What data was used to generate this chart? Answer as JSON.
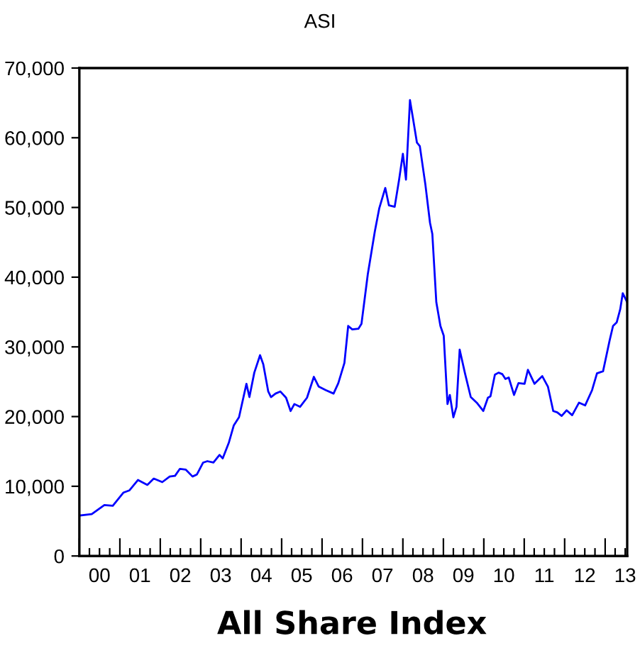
{
  "chart_data": {
    "type": "line",
    "title": "ASI",
    "xlabel": "All Share Index",
    "x": [
      "2000-01-01",
      "2000-04-22",
      "2000-08-14",
      "2000-10-29",
      "2001-02-03",
      "2001-03-27",
      "2001-06-13",
      "2001-09-06",
      "2001-11-03",
      "2002-01-19",
      "2002-03-27",
      "2002-05-14",
      "2002-06-27",
      "2002-08-18",
      "2002-10-19",
      "2002-11-28",
      "2003-01-23",
      "2003-03-02",
      "2003-04-26",
      "2003-06-20",
      "2003-07-19",
      "2003-09-13",
      "2003-10-26",
      "2003-12-13",
      "2004-02-18",
      "2004-03-16",
      "2004-04-29",
      "2004-06-20",
      "2004-07-19",
      "2004-09-02",
      "2004-09-27",
      "2004-11-07",
      "2004-12-20",
      "2005-02-10",
      "2005-03-23",
      "2005-04-26",
      "2005-06-16",
      "2005-08-18",
      "2005-10-19",
      "2005-12-02",
      "2006-02-03",
      "2006-04-15",
      "2006-05-28",
      "2006-07-22",
      "2006-08-25",
      "2006-10-01",
      "2006-11-25",
      "2006-12-23",
      "2007-02-18",
      "2007-04-22",
      "2007-06-02",
      "2007-07-26",
      "2007-08-28",
      "2007-10-19",
      "2007-11-28",
      "2008-01-01",
      "2008-01-29",
      "2008-03-05",
      "2008-04-01",
      "2008-05-07",
      "2008-06-02",
      "2008-07-22",
      "2008-09-02",
      "2008-09-23",
      "2008-10-29",
      "2008-12-05",
      "2009-01-04",
      "2009-02-07",
      "2009-02-28",
      "2009-04-01",
      "2009-04-29",
      "2009-05-28",
      "2009-07-15",
      "2009-09-05",
      "2009-10-29",
      "2009-12-27",
      "2010-02-07",
      "2010-03-02",
      "2010-04-11",
      "2010-05-14",
      "2010-06-16",
      "2010-07-15",
      "2010-08-14",
      "2010-10-01",
      "2010-11-10",
      "2011-01-04",
      "2011-02-03",
      "2011-04-04",
      "2011-06-13",
      "2011-08-03",
      "2011-09-20",
      "2011-10-26",
      "2011-12-05",
      "2012-01-19",
      "2012-03-09",
      "2012-05-10",
      "2012-07-04",
      "2012-09-05",
      "2012-10-19",
      "2012-12-13",
      "2013-02-10",
      "2013-03-13",
      "2013-04-15",
      "2013-05-17",
      "2013-06-09",
      "2013-07-19"
    ],
    "series": [
      {
        "color": "#0000ff",
        "values": [
          5800,
          6000,
          7300,
          7200,
          9100,
          9400,
          10900,
          10200,
          11100,
          10600,
          11400,
          11500,
          12500,
          12400,
          11400,
          11700,
          13400,
          13600,
          13400,
          14500,
          14000,
          16300,
          18700,
          19900,
          24700,
          22800,
          26300,
          28800,
          27500,
          23600,
          22800,
          23300,
          23600,
          22700,
          20800,
          21800,
          21400,
          22700,
          25700,
          24300,
          23800,
          23300,
          24800,
          27700,
          33000,
          32500,
          32600,
          33300,
          40400,
          46500,
          49900,
          52800,
          50300,
          50100,
          54000,
          57700,
          54000,
          65400,
          62800,
          59300,
          58800,
          53300,
          47800,
          46200,
          36400,
          33000,
          31600,
          21800,
          23100,
          19900,
          21400,
          29600,
          26200,
          22800,
          22000,
          20800,
          22700,
          22900,
          26000,
          26300,
          26100,
          25400,
          25600,
          23100,
          24800,
          24700,
          26700,
          24700,
          25800,
          24300,
          20800,
          20600,
          20100,
          20900,
          20200,
          22000,
          21600,
          23800,
          26200,
          26500,
          30900,
          33000,
          33500,
          35400,
          37700,
          36400
        ]
      }
    ],
    "xlim": [
      "2000-01-01",
      "2013-07-19"
    ],
    "xticks": [
      {
        "value": "2000-01-01",
        "label": null
      },
      {
        "value": "2000-04-01",
        "label": null
      },
      {
        "value": "2000-07-01",
        "label": "00"
      },
      {
        "value": "2000-10-01",
        "label": null
      },
      {
        "value": "2001-01-01",
        "label": null
      },
      {
        "value": "2001-04-01",
        "label": null
      },
      {
        "value": "2001-07-01",
        "label": "01"
      },
      {
        "value": "2001-10-01",
        "label": null
      },
      {
        "value": "2002-01-01",
        "label": null
      },
      {
        "value": "2002-04-01",
        "label": null
      },
      {
        "value": "2002-07-01",
        "label": "02"
      },
      {
        "value": "2002-10-01",
        "label": null
      },
      {
        "value": "2003-01-01",
        "label": null
      },
      {
        "value": "2003-04-01",
        "label": null
      },
      {
        "value": "2003-07-01",
        "label": "03"
      },
      {
        "value": "2003-10-01",
        "label": null
      },
      {
        "value": "2004-01-01",
        "label": null
      },
      {
        "value": "2004-04-01",
        "label": null
      },
      {
        "value": "2004-07-01",
        "label": "04"
      },
      {
        "value": "2004-10-01",
        "label": null
      },
      {
        "value": "2005-01-01",
        "label": null
      },
      {
        "value": "2005-04-01",
        "label": null
      },
      {
        "value": "2005-07-01",
        "label": "05"
      },
      {
        "value": "2005-10-01",
        "label": null
      },
      {
        "value": "2006-01-01",
        "label": null
      },
      {
        "value": "2006-04-01",
        "label": null
      },
      {
        "value": "2006-07-01",
        "label": "06"
      },
      {
        "value": "2006-10-01",
        "label": null
      },
      {
        "value": "2007-01-01",
        "label": null
      },
      {
        "value": "2007-04-01",
        "label": null
      },
      {
        "value": "2007-07-01",
        "label": "07"
      },
      {
        "value": "2007-10-01",
        "label": null
      },
      {
        "value": "2008-01-01",
        "label": null
      },
      {
        "value": "2008-04-01",
        "label": null
      },
      {
        "value": "2008-07-01",
        "label": "08"
      },
      {
        "value": "2008-10-01",
        "label": null
      },
      {
        "value": "2009-01-01",
        "label": null
      },
      {
        "value": "2009-04-01",
        "label": null
      },
      {
        "value": "2009-07-01",
        "label": "09"
      },
      {
        "value": "2009-10-01",
        "label": null
      },
      {
        "value": "2010-01-01",
        "label": null
      },
      {
        "value": "2010-04-01",
        "label": null
      },
      {
        "value": "2010-07-01",
        "label": "10"
      },
      {
        "value": "2010-10-01",
        "label": null
      },
      {
        "value": "2011-01-01",
        "label": null
      },
      {
        "value": "2011-04-01",
        "label": null
      },
      {
        "value": "2011-07-01",
        "label": "11"
      },
      {
        "value": "2011-10-01",
        "label": null
      },
      {
        "value": "2012-01-01",
        "label": null
      },
      {
        "value": "2012-04-01",
        "label": null
      },
      {
        "value": "2012-07-01",
        "label": "12"
      },
      {
        "value": "2012-10-01",
        "label": null
      },
      {
        "value": "2013-01-01",
        "label": null
      },
      {
        "value": "2013-04-01",
        "label": null
      },
      {
        "value": "2013-07-01",
        "label": "13"
      }
    ],
    "ylim": [
      0,
      70000
    ],
    "yticks": [
      0,
      {
        "value": 10000,
        "label": "10,000"
      },
      {
        "value": 20000,
        "label": "20,000"
      },
      {
        "value": 30000,
        "label": "30,000"
      },
      {
        "value": 40000,
        "label": "40,000"
      },
      {
        "value": 50000,
        "label": "50,000"
      },
      {
        "value": 60000,
        "label": "60,000"
      },
      {
        "value": 70000,
        "label": "70,000"
      }
    ],
    "grid": false,
    "legend": false,
    "marker": "none",
    "line_style": "solid"
  }
}
